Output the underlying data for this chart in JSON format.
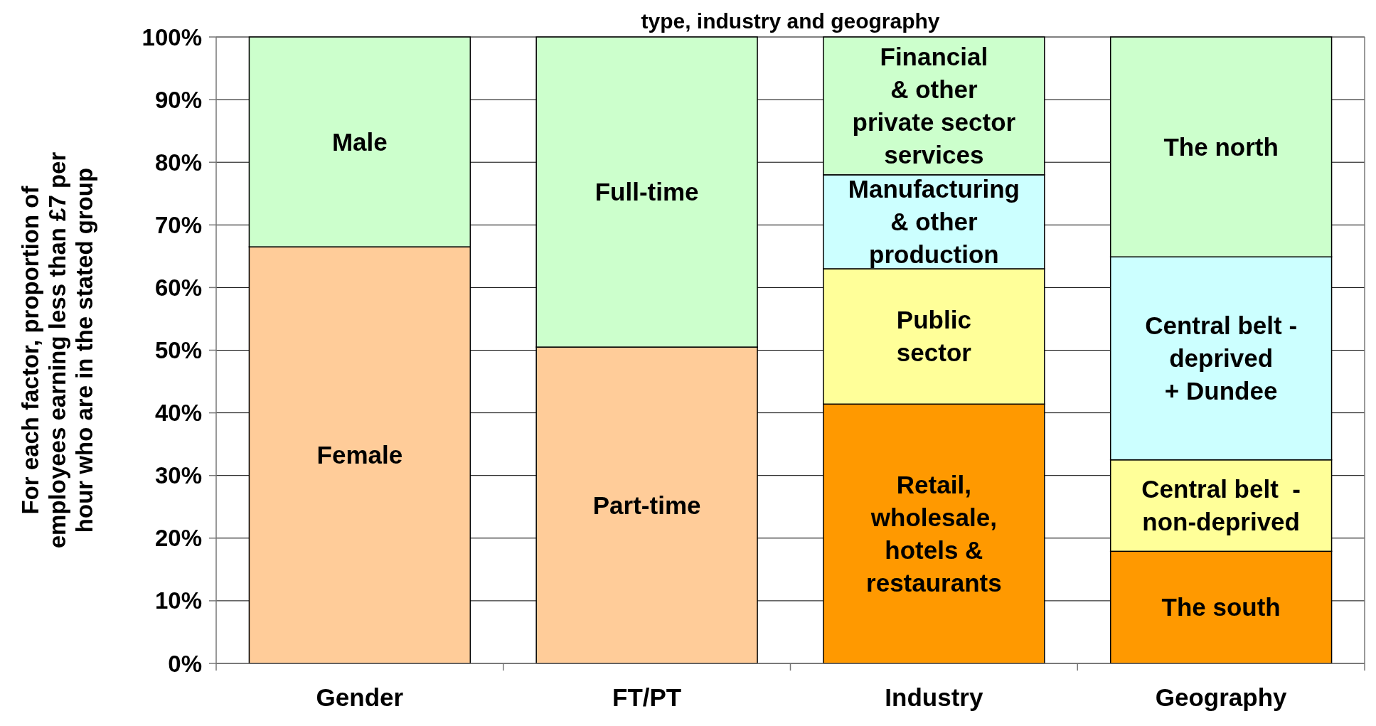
{
  "chart_data": {
    "type": "bar",
    "title": "type, industry and geography",
    "ylabel": "For each factor, proportion of\nemployees earning less than £7 per\nhour who are in the stated group",
    "categories": [
      "Gender",
      "FT/PT",
      "Industry",
      "Geography"
    ],
    "stacked": true,
    "grid": "y",
    "ylim": [
      0,
      100
    ],
    "yticks": [
      {
        "value": 0,
        "label": "0%"
      },
      {
        "value": 10,
        "label": "10%"
      },
      {
        "value": 20,
        "label": "20%"
      },
      {
        "value": 30,
        "label": "30%"
      },
      {
        "value": 40,
        "label": "40%"
      },
      {
        "value": 50,
        "label": "50%"
      },
      {
        "value": 60,
        "label": "60%"
      },
      {
        "value": 70,
        "label": "70%"
      },
      {
        "value": 80,
        "label": "80%"
      },
      {
        "value": 90,
        "label": "90%"
      },
      {
        "value": 100,
        "label": "100%"
      }
    ],
    "series": [
      {
        "values": [
          66.5,
          50.5,
          41.4,
          17.9
        ],
        "colors": [
          "#ffcc99",
          "#ffcc99",
          "#ff9900",
          "#ff9900"
        ],
        "value_labels": [
          "Female",
          "Part-time",
          "Retail,\nwholesale,\nhotels &\nrestaurants",
          "The south"
        ]
      },
      {
        "values": [
          33.5,
          49.5,
          21.6,
          14.6
        ],
        "colors": [
          "#ccffcc",
          "#ccffcc",
          "#ffff99",
          "#ffff99"
        ],
        "value_labels": [
          "Male",
          "Full-time",
          "Public\nsector",
          "Central belt  -\nnon-deprived"
        ]
      },
      {
        "values": [
          null,
          null,
          15.0,
          32.4
        ],
        "colors": [
          null,
          null,
          "#ccffff",
          "#ccffff"
        ],
        "value_labels": [
          null,
          null,
          "Manufacturing\n& other\nproduction",
          "Central belt -\ndeprived\n+ Dundee"
        ]
      },
      {
        "values": [
          null,
          null,
          22.0,
          35.1
        ],
        "colors": [
          null,
          null,
          "#ccffcc",
          "#ccffcc"
        ],
        "value_labels": [
          null,
          null,
          "Financial\n& other\nprivate sector\nservices",
          "The north"
        ]
      }
    ]
  }
}
